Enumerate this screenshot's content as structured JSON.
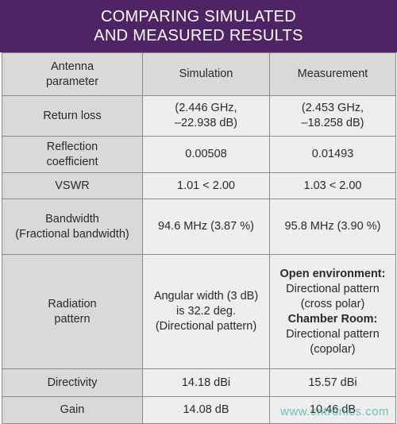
{
  "title": {
    "line1": "COMPARING SIMULATED",
    "line2": "AND MEASURED RESULTS"
  },
  "header": {
    "param": [
      "Antenna",
      "parameter"
    ],
    "sim": "Simulation",
    "meas": "Measurement"
  },
  "rows": {
    "return_loss": {
      "param": "Return loss",
      "sim": [
        "(2.446 GHz,",
        "–22.938 dB)"
      ],
      "meas": [
        "(2.453 GHz,",
        "–18.258 dB)"
      ]
    },
    "reflection": {
      "param": [
        "Reflection",
        "coefficient"
      ],
      "sim": "0.00508",
      "meas": "0.01493"
    },
    "vswr": {
      "param": "VSWR",
      "sim": "1.01 < 2.00",
      "meas": "1.03 < 2.00"
    },
    "bandwidth": {
      "param": [
        "Bandwidth",
        "(Fractional bandwidth)"
      ],
      "sim": "94.6 MHz (3.87 %)",
      "meas": "95.8 MHz (3.90 %)"
    },
    "radiation": {
      "param": [
        "Radiation",
        "pattern"
      ],
      "sim": [
        "Angular width (3 dB)",
        "is 32.2 deg.",
        "(Directional pattern)"
      ],
      "meas": {
        "open_label": "Open environment:",
        "open_lines": [
          "Directional pattern",
          "(cross polar)"
        ],
        "chamber_label": "Chamber Room:",
        "chamber_lines": [
          "Directional pattern",
          "(copolar)"
        ]
      }
    },
    "directivity": {
      "param": "Directivity",
      "sim": "14.18 dBi",
      "meas": "15.57 dBi"
    },
    "gain": {
      "param": "Gain",
      "sim": "14.08 dB",
      "meas": "10.46 dB"
    }
  },
  "watermark": "www.cntronics.com",
  "colors": {
    "title_bg": "#4f2466",
    "param_col_bg": "#d9d9d9",
    "value_col_bg": "#eeeeee"
  }
}
